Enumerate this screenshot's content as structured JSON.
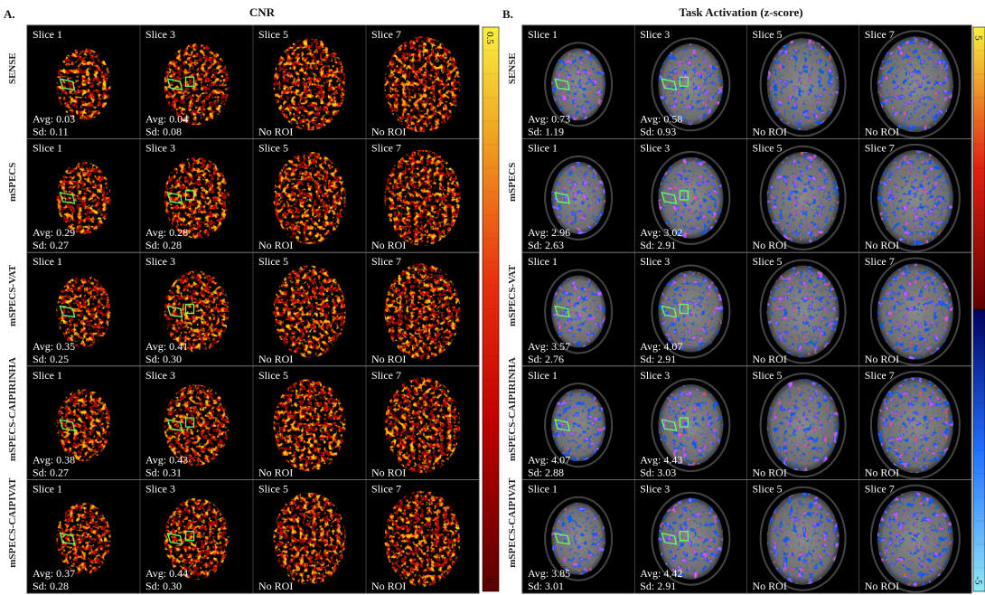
{
  "panels": [
    {
      "letter": "A.",
      "title": "CNR",
      "colorbar": {
        "ticks": [
          "0.5",
          "0"
        ]
      },
      "rows": [
        {
          "label": "SENSE",
          "cells": [
            {
              "slice": "Slice 1",
              "avg": "Avg: 0.03",
              "sd": "Sd: 0.11"
            },
            {
              "slice": "Slice 3",
              "avg": "Avg: 0.04",
              "sd": "Sd: 0.08"
            },
            {
              "slice": "Slice 5",
              "note": "No ROI"
            },
            {
              "slice": "Slice 7",
              "note": "No ROI"
            }
          ]
        },
        {
          "label": "mSPECS",
          "cells": [
            {
              "slice": "Slice 1",
              "avg": "Avg: 0.29",
              "sd": "Sd: 0.27"
            },
            {
              "slice": "Slice 3",
              "avg": "Avg: 0.28",
              "sd": "Sd: 0.28"
            },
            {
              "slice": "Slice 5",
              "note": "No ROI"
            },
            {
              "slice": "Slice 7",
              "note": "No ROI"
            }
          ]
        },
        {
          "label": "mSPECS-VAT",
          "cells": [
            {
              "slice": "Slice 1",
              "avg": "Avg: 0.35",
              "sd": "Sd: 0.25"
            },
            {
              "slice": "Slice 3",
              "avg": "Avg: 0.41",
              "sd": "Sd: 0.30"
            },
            {
              "slice": "Slice 5",
              "note": "No ROI"
            },
            {
              "slice": "Slice 7",
              "note": "No ROI"
            }
          ]
        },
        {
          "label": "mSPECS-CAIPIRINHA",
          "cells": [
            {
              "slice": "Slice 1",
              "avg": "Avg: 0.38",
              "sd": "Sd: 0.27"
            },
            {
              "slice": "Slice 3",
              "avg": "Avg: 0.43",
              "sd": "Sd: 0.31"
            },
            {
              "slice": "Slice 5",
              "note": "No ROI"
            },
            {
              "slice": "Slice 7",
              "note": "No ROI"
            }
          ]
        },
        {
          "label": "mSPECS-CAIPIVAT",
          "cells": [
            {
              "slice": "Slice 1",
              "avg": "Avg: 0.37",
              "sd": "Sd: 0.28"
            },
            {
              "slice": "Slice 3",
              "avg": "Avg: 0.44",
              "sd": "Sd: 0.30"
            },
            {
              "slice": "Slice 5",
              "note": "No ROI"
            },
            {
              "slice": "Slice 7",
              "note": "No ROI"
            }
          ]
        }
      ]
    },
    {
      "letter": "B.",
      "title": "Task Activation (z-score)",
      "colorbar": {
        "ticks": [
          "5",
          "0",
          "-5"
        ]
      },
      "rows": [
        {
          "label": "SENSE",
          "cells": [
            {
              "slice": "Slice 1",
              "avg": "Avg: 0.73",
              "sd": "Sd: 1.19"
            },
            {
              "slice": "Slice 3",
              "avg": "Avg: 0.58",
              "sd": "Sd: 0.93"
            },
            {
              "slice": "Slice 5",
              "note": "No ROI"
            },
            {
              "slice": "Slice 7",
              "note": "No ROI"
            }
          ]
        },
        {
          "label": "mSPECS",
          "cells": [
            {
              "slice": "Slice 1",
              "avg": "Avg: 2.96",
              "sd": "Sd: 2.63"
            },
            {
              "slice": "Slice 3",
              "avg": "Avg: 3.02",
              "sd": "Sd: 2.91"
            },
            {
              "slice": "Slice 5",
              "note": "No ROI"
            },
            {
              "slice": "Slice 7",
              "note": "No ROI"
            }
          ]
        },
        {
          "label": "mSPECS-VAT",
          "cells": [
            {
              "slice": "Slice 1",
              "avg": "Avg: 3.57",
              "sd": "Sd: 2.76"
            },
            {
              "slice": "Slice 3",
              "avg": "Avg: 4.07",
              "sd": "Sd: 2.91"
            },
            {
              "slice": "Slice 5",
              "note": "No ROI"
            },
            {
              "slice": "Slice 7",
              "note": "No ROI"
            }
          ]
        },
        {
          "label": "mSPECS-CAIPIRINHA",
          "cells": [
            {
              "slice": "Slice 1",
              "avg": "Avg: 4.07",
              "sd": "Sd: 2.88"
            },
            {
              "slice": "Slice 3",
              "avg": "Avg: 4.43",
              "sd": "Sd: 3.03"
            },
            {
              "slice": "Slice 5",
              "note": "No ROI"
            },
            {
              "slice": "Slice 7",
              "note": "No ROI"
            }
          ]
        },
        {
          "label": "mSPECS-CAIPIVAT",
          "cells": [
            {
              "slice": "Slice 1",
              "avg": "Avg: 3.85",
              "sd": "Sd: 3.01"
            },
            {
              "slice": "Slice 3",
              "avg": "Avg: 4.42",
              "sd": "Sd: 2.91"
            },
            {
              "slice": "Slice 5",
              "note": "No ROI"
            },
            {
              "slice": "Slice 7",
              "note": "No ROI"
            }
          ]
        }
      ]
    }
  ]
}
